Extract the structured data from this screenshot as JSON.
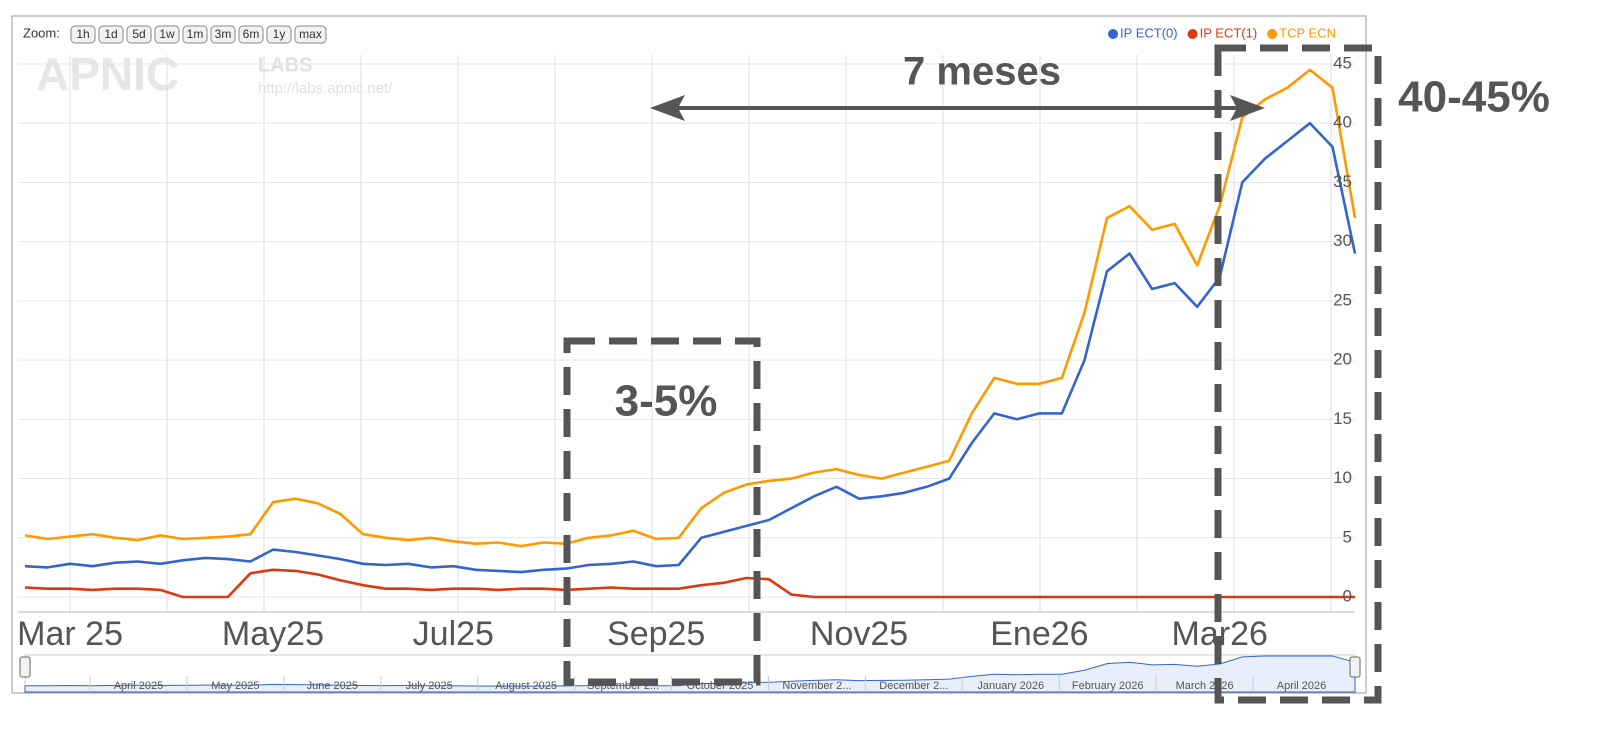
{
  "chart_data": {
    "type": "line",
    "zoom": {
      "label": "Zoom:",
      "buttons": [
        "1h",
        "1d",
        "5d",
        "1w",
        "1m",
        "3m",
        "6m",
        "1y",
        "max"
      ]
    },
    "watermark": {
      "logo": "APNIC",
      "labs": "LABS",
      "url": "http://labs.apnic.net/"
    },
    "annotations": {
      "arrow": "7 meses",
      "box_low": "3-5%",
      "box_high": "40-45%"
    },
    "categories": [
      null,
      null,
      "Mar 25",
      null,
      null,
      null,
      null,
      null,
      null,
      null,
      null,
      "May25",
      null,
      null,
      null,
      null,
      null,
      null,
      null,
      "Jul25",
      null,
      null,
      null,
      null,
      null,
      null,
      null,
      null,
      "Sep25",
      null,
      null,
      null,
      null,
      null,
      null,
      null,
      null,
      "Nov25",
      null,
      null,
      null,
      null,
      null,
      null,
      null,
      "Ene26",
      null,
      null,
      null,
      null,
      null,
      null,
      null,
      "Mar26",
      null,
      null,
      null,
      null,
      null,
      null
    ],
    "series": [
      {
        "name": "IP ECT(0)",
        "color": "#3366cc",
        "values": [
          2.6,
          2.5,
          2.8,
          2.6,
          2.9,
          3.0,
          2.8,
          3.1,
          3.3,
          3.2,
          3.0,
          4.0,
          3.8,
          3.5,
          3.2,
          2.8,
          2.7,
          2.8,
          2.5,
          2.6,
          2.3,
          2.2,
          2.1,
          2.3,
          2.4,
          2.7,
          2.8,
          3.0,
          2.6,
          2.7,
          5.0,
          5.5,
          6.0,
          6.5,
          7.5,
          8.5,
          9.3,
          8.3,
          8.5,
          8.8,
          9.3,
          10.0,
          13.0,
          15.5,
          15.0,
          15.5,
          15.5,
          20.0,
          27.5,
          29.0,
          26.0,
          26.5,
          24.5,
          27.0,
          35.0,
          37.0,
          38.5,
          40.0,
          38.0,
          29.0
        ]
      },
      {
        "name": "IP ECT(1)",
        "color": "#dc3912",
        "values": [
          0.8,
          0.7,
          0.7,
          0.6,
          0.7,
          0.7,
          0.6,
          0,
          0,
          0,
          2.0,
          2.3,
          2.2,
          1.9,
          1.4,
          1.0,
          0.7,
          0.7,
          0.6,
          0.7,
          0.7,
          0.6,
          0.7,
          0.7,
          0.6,
          0.7,
          0.8,
          0.7,
          0.7,
          0.7,
          1.0,
          1.2,
          1.6,
          1.5,
          0.2,
          0,
          0,
          0,
          0,
          0,
          0,
          0,
          0,
          0,
          0,
          0,
          0,
          0,
          0,
          0,
          0,
          0,
          0,
          0,
          0,
          0,
          0,
          0,
          0,
          0
        ]
      },
      {
        "name": "TCP ECN",
        "color": "#ff9900",
        "values": [
          5.2,
          4.9,
          5.1,
          5.3,
          5.0,
          4.8,
          5.2,
          4.9,
          5.0,
          5.1,
          5.3,
          8.0,
          8.3,
          7.9,
          7.0,
          5.3,
          5.0,
          4.8,
          5.0,
          4.7,
          4.5,
          4.6,
          4.3,
          4.6,
          4.5,
          5.0,
          5.2,
          5.6,
          4.9,
          5.0,
          7.5,
          8.8,
          9.5,
          9.8,
          10.0,
          10.5,
          10.8,
          10.3,
          10.0,
          10.5,
          11.0,
          11.5,
          15.5,
          18.5,
          18.0,
          18.0,
          18.5,
          24.0,
          32.0,
          33.0,
          31.0,
          31.5,
          28.0,
          33.0,
          40.5,
          42.0,
          43.0,
          44.5,
          43.0,
          32.0
        ]
      }
    ],
    "ylim": [
      0,
      45
    ],
    "yticks": [
      0,
      5,
      10,
      15,
      20,
      25,
      30,
      35,
      40,
      45
    ],
    "grid": true,
    "legend": "top-right",
    "navigator_labels": [
      "April 2025",
      "May 2025",
      "June 2025",
      "July 2025",
      "August 2025",
      "September 2...",
      "October 2025",
      "November 2...",
      "December 2...",
      "January 2026",
      "February 2026",
      "March 2026",
      "April 2026"
    ]
  }
}
